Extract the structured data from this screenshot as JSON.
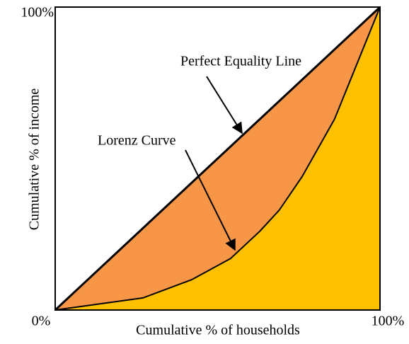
{
  "chart_data": {
    "type": "area",
    "x_label": "Cumulative % of households",
    "y_label": "Cumulative % of income",
    "xlim": [
      0,
      100
    ],
    "ylim": [
      0,
      100
    ],
    "xticks": [
      {
        "value": 0,
        "label": "0%"
      },
      {
        "value": 100,
        "label": "100%"
      }
    ],
    "yticks": [
      {
        "value": 100,
        "label": "100%"
      }
    ],
    "series": [
      {
        "name": "Perfect Equality Line",
        "color": "#000000",
        "fill": "#f79646",
        "x": [
          0,
          100
        ],
        "values": [
          0,
          100
        ]
      },
      {
        "name": "Lorenz Curve",
        "color": "#000000",
        "fill": "#ffc000",
        "x": [
          0,
          27,
          42,
          54,
          63,
          69,
          76,
          86,
          100
        ],
        "values": [
          0,
          4,
          10,
          17,
          26,
          33,
          44,
          63,
          100
        ]
      }
    ]
  }
}
